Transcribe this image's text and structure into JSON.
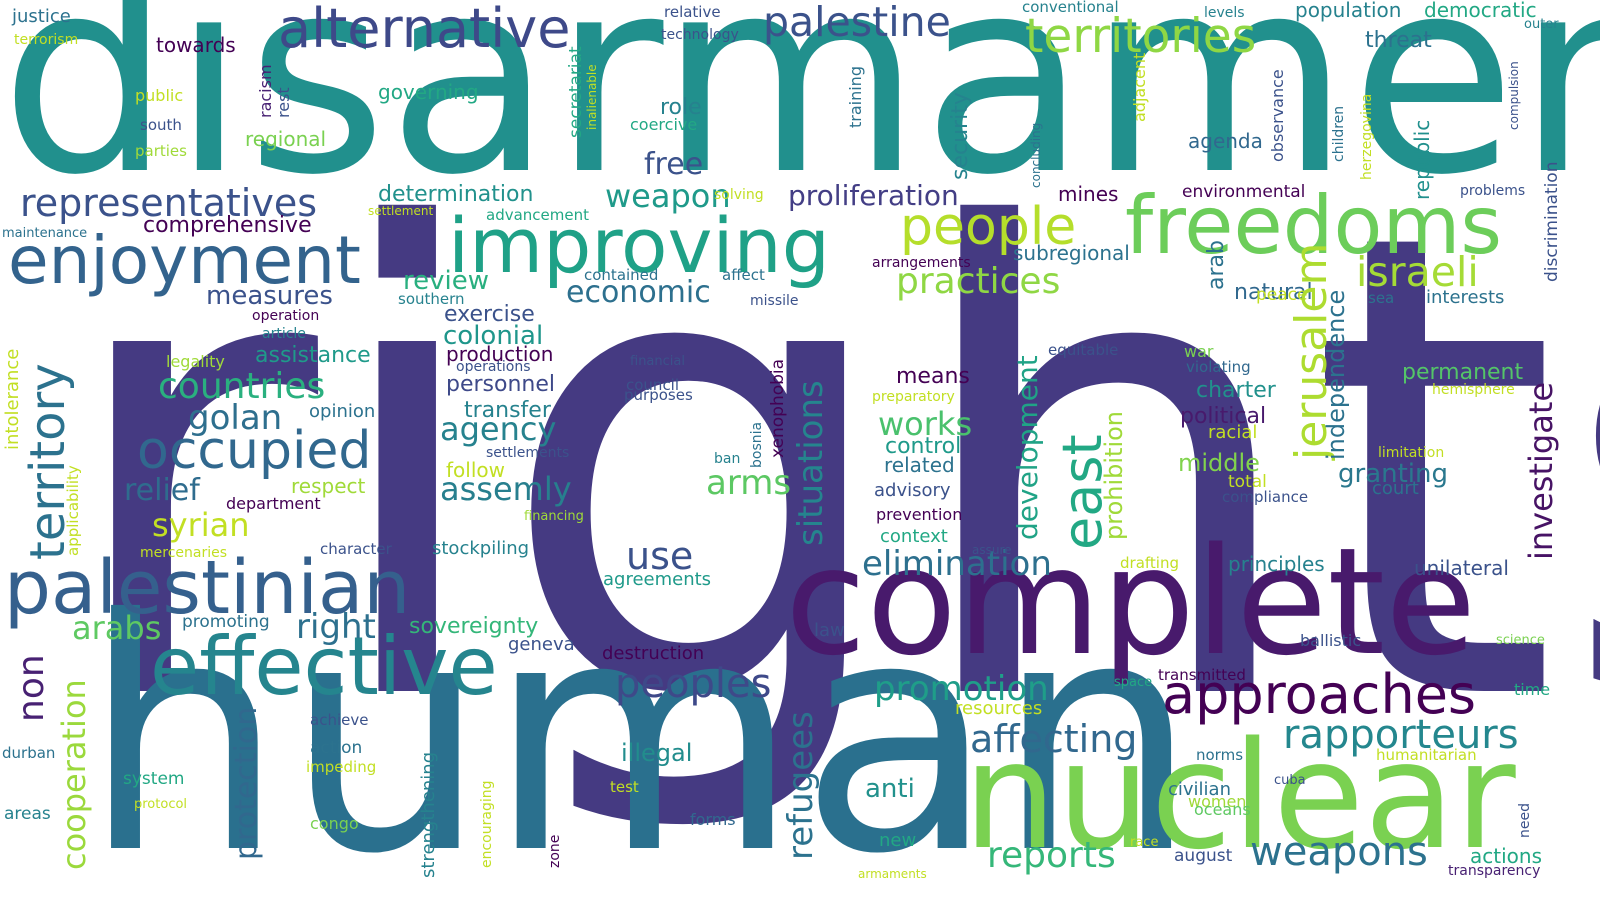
{
  "words": [
    {
      "text": "rights",
      "color": "#453a82"
    },
    {
      "text": "disarmament",
      "color": "#21908d"
    },
    {
      "text": "human",
      "color": "#2a708e"
    },
    {
      "text": "complete",
      "color": "#481a6c"
    },
    {
      "text": "nuclear",
      "color": "#7ad151"
    },
    {
      "text": "freedoms",
      "color": "#6ccd5a"
    },
    {
      "text": "improving",
      "color": "#1fa187"
    },
    {
      "text": "effective",
      "color": "#25858e"
    },
    {
      "text": "palestinian",
      "color": "#35608d"
    },
    {
      "text": "enjoyment",
      "color": "#33638d"
    },
    {
      "text": "alternative",
      "color": "#3e4989"
    },
    {
      "text": "palestine",
      "color": "#3b528b"
    },
    {
      "text": "territories",
      "color": "#8fd744"
    },
    {
      "text": "approaches",
      "color": "#440154"
    },
    {
      "text": "people",
      "color": "#b5de2b"
    },
    {
      "text": "israeli",
      "color": "#a5db36"
    },
    {
      "text": "occupied",
      "color": "#31688e"
    },
    {
      "text": "representatives",
      "color": "#3b528b"
    },
    {
      "text": "territory",
      "color": "#2c728e"
    },
    {
      "text": "jerusalem",
      "color": "#addc30"
    },
    {
      "text": "east",
      "color": "#22a884"
    },
    {
      "text": "weapons",
      "color": "#2c728e"
    },
    {
      "text": "rapporteurs",
      "color": "#24878e"
    },
    {
      "text": "peoples",
      "color": "#3e4989"
    },
    {
      "text": "reports",
      "color": "#35b779"
    },
    {
      "text": "affecting",
      "color": "#31688e"
    },
    {
      "text": "promotion",
      "color": "#1f9e89"
    },
    {
      "text": "countries",
      "color": "#2ab07f"
    },
    {
      "text": "practices",
      "color": "#8fd744"
    },
    {
      "text": "situations",
      "color": "#25858e"
    },
    {
      "text": "elimination",
      "color": "#2d708e"
    },
    {
      "text": "economic",
      "color": "#2d708e"
    },
    {
      "text": "proliferation",
      "color": "#433e85"
    },
    {
      "text": "weapon",
      "color": "#1f9a8a"
    },
    {
      "text": "golan",
      "color": "#2e6f8e"
    },
    {
      "text": "use",
      "color": "#3b528b"
    },
    {
      "text": "syrian",
      "color": "#c2df23"
    },
    {
      "text": "agency",
      "color": "#26828e"
    },
    {
      "text": "assemly",
      "color": "#277f8e"
    },
    {
      "text": "arms",
      "color": "#5cc863"
    },
    {
      "text": "right",
      "color": "#2d708e"
    },
    {
      "text": "relief",
      "color": "#2f6c8e"
    },
    {
      "text": "arabs",
      "color": "#5ec962"
    },
    {
      "text": "measures",
      "color": "#3b528b"
    },
    {
      "text": "works",
      "color": "#4ac16d"
    },
    {
      "text": "investigate",
      "color": "#471365"
    },
    {
      "text": "development",
      "color": "#20a386"
    },
    {
      "text": "independence",
      "color": "#2c728e"
    },
    {
      "text": "prohibition",
      "color": "#a0da39"
    },
    {
      "text": "refugees",
      "color": "#2c728e"
    },
    {
      "text": "cooperation",
      "color": "#9bd93c"
    },
    {
      "text": "protection",
      "color": "#31688e"
    },
    {
      "text": "non",
      "color": "#482173"
    },
    {
      "text": "colonial",
      "color": "#1f968b"
    },
    {
      "text": "granting",
      "color": "#2a788e"
    },
    {
      "text": "middle",
      "color": "#81d34d"
    },
    {
      "text": "free",
      "color": "#3b528b"
    },
    {
      "text": "security",
      "color": "#25838e"
    },
    {
      "text": "review",
      "color": "#29af7f"
    },
    {
      "text": "sovereignty",
      "color": "#34b679"
    },
    {
      "text": "anti",
      "color": "#21918c"
    },
    {
      "text": "illegal",
      "color": "#228d8d"
    },
    {
      "text": "republic",
      "color": "#21908d"
    },
    {
      "text": "natural",
      "color": "#31688e"
    },
    {
      "text": "arab",
      "color": "#2c728e"
    },
    {
      "text": "charter",
      "color": "#21918c"
    },
    {
      "text": "means",
      "color": "#440154"
    },
    {
      "text": "permanent",
      "color": "#54c568"
    },
    {
      "text": "political",
      "color": "#481a6c"
    },
    {
      "text": "comprehensive",
      "color": "#440154"
    },
    {
      "text": "determination",
      "color": "#21918c"
    },
    {
      "text": "assistance",
      "color": "#1f9a8a"
    },
    {
      "text": "production",
      "color": "#440154"
    },
    {
      "text": "personnel",
      "color": "#3e4989"
    },
    {
      "text": "transfer",
      "color": "#26828e"
    },
    {
      "text": "exercise",
      "color": "#3b528b"
    },
    {
      "text": "governing",
      "color": "#22a884"
    },
    {
      "text": "towards",
      "color": "#440154"
    },
    {
      "text": "threat",
      "color": "#2c728e"
    },
    {
      "text": "population",
      "color": "#26828e"
    },
    {
      "text": "democratic",
      "color": "#22a884"
    },
    {
      "text": "role",
      "color": "#26828e"
    },
    {
      "text": "agenda",
      "color": "#31688e"
    },
    {
      "text": "mines",
      "color": "#440154"
    },
    {
      "text": "subregional",
      "color": "#2c728e"
    },
    {
      "text": "environmental",
      "color": "#440154"
    },
    {
      "text": "interests",
      "color": "#2c728e"
    },
    {
      "text": "principles",
      "color": "#26828e"
    },
    {
      "text": "unilateral",
      "color": "#3b528b"
    },
    {
      "text": "court",
      "color": "#2c728e"
    },
    {
      "text": "control",
      "color": "#1f9a8a"
    },
    {
      "text": "related",
      "color": "#2c728e"
    },
    {
      "text": "advisory",
      "color": "#3b528b"
    },
    {
      "text": "prevention",
      "color": "#440154"
    },
    {
      "text": "context",
      "color": "#22a884"
    },
    {
      "text": "regional",
      "color": "#7ad151"
    },
    {
      "text": "respect",
      "color": "#a0da39"
    },
    {
      "text": "follow",
      "color": "#c2df23"
    },
    {
      "text": "opinion",
      "color": "#2c728e"
    },
    {
      "text": "stockpiling",
      "color": "#26828e"
    },
    {
      "text": "agreements",
      "color": "#1f9a8a"
    },
    {
      "text": "geneva",
      "color": "#3b528b"
    },
    {
      "text": "destruction",
      "color": "#440154"
    },
    {
      "text": "promoting",
      "color": "#2c728e"
    },
    {
      "text": "resources",
      "color": "#c2df23"
    },
    {
      "text": "law",
      "color": "#3b528b"
    },
    {
      "text": "ballistic",
      "color": "#3b528b"
    },
    {
      "text": "strengthening",
      "color": "#26828e"
    },
    {
      "text": "action",
      "color": "#2c728e"
    },
    {
      "text": "system",
      "color": "#22a884"
    },
    {
      "text": "areas",
      "color": "#26828e"
    },
    {
      "text": "durban",
      "color": "#2c728e"
    },
    {
      "text": "congo",
      "color": "#7ad151"
    },
    {
      "text": "forms",
      "color": "#31688e"
    },
    {
      "text": "new",
      "color": "#22a884"
    },
    {
      "text": "civilian",
      "color": "#2c728e"
    },
    {
      "text": "women",
      "color": "#a0da39"
    },
    {
      "text": "oceans",
      "color": "#5ec962"
    },
    {
      "text": "august",
      "color": "#3b528b"
    },
    {
      "text": "actions",
      "color": "#22a884"
    },
    {
      "text": "transparency",
      "color": "#482173"
    },
    {
      "text": "time",
      "color": "#22a884"
    },
    {
      "text": "humanitarian",
      "color": "#c2df23"
    },
    {
      "text": "norms",
      "color": "#2c728e"
    },
    {
      "text": "transmitted",
      "color": "#440154"
    },
    {
      "text": "compliance",
      "color": "#3b528b"
    },
    {
      "text": "total",
      "color": "#c2df23"
    },
    {
      "text": "racial",
      "color": "#c2df23"
    },
    {
      "text": "violating",
      "color": "#31688e"
    },
    {
      "text": "war",
      "color": "#7ad151"
    },
    {
      "text": "peace",
      "color": "#c2df23"
    },
    {
      "text": "sea",
      "color": "#2c728e"
    },
    {
      "text": "hemisphere",
      "color": "#c2df23"
    },
    {
      "text": "limitation",
      "color": "#c2df23"
    },
    {
      "text": "justice",
      "color": "#2c728e"
    },
    {
      "text": "terrorism",
      "color": "#c2df23"
    },
    {
      "text": "public",
      "color": "#c2df23"
    },
    {
      "text": "south",
      "color": "#3b528b"
    },
    {
      "text": "parties",
      "color": "#a0da39"
    },
    {
      "text": "racism",
      "color": "#482173"
    },
    {
      "text": "rest",
      "color": "#3b528b"
    },
    {
      "text": "relative",
      "color": "#3b528b"
    },
    {
      "text": "technology",
      "color": "#3b528b"
    },
    {
      "text": "conventional",
      "color": "#26828e"
    },
    {
      "text": "levels",
      "color": "#26828e"
    },
    {
      "text": "outer",
      "color": "#26828e"
    },
    {
      "text": "training",
      "color": "#2c728e"
    },
    {
      "text": "secretariat",
      "color": "#22a884"
    },
    {
      "text": "inalienable",
      "color": "#c2df23"
    },
    {
      "text": "adjacent",
      "color": "#c2df23"
    },
    {
      "text": "coercive",
      "color": "#22a884"
    },
    {
      "text": "observance",
      "color": "#3b528b"
    },
    {
      "text": "children",
      "color": "#2c728e"
    },
    {
      "text": "herzegovina",
      "color": "#c2df23"
    },
    {
      "text": "compulsion",
      "color": "#3b528b"
    },
    {
      "text": "discrimination",
      "color": "#3b528b"
    },
    {
      "text": "concluding",
      "color": "#2c728e"
    },
    {
      "text": "problems",
      "color": "#3b528b"
    },
    {
      "text": "solving",
      "color": "#c2df23"
    },
    {
      "text": "maintenance",
      "color": "#2c728e"
    },
    {
      "text": "settlement",
      "color": "#c2df23"
    },
    {
      "text": "advancement",
      "color": "#22a884"
    },
    {
      "text": "arrangements",
      "color": "#440154"
    },
    {
      "text": "contained",
      "color": "#2c728e"
    },
    {
      "text": "affect",
      "color": "#2c728e"
    },
    {
      "text": "southern",
      "color": "#26828e"
    },
    {
      "text": "missile",
      "color": "#3b528b"
    },
    {
      "text": "operation",
      "color": "#440154"
    },
    {
      "text": "article",
      "color": "#26828e"
    },
    {
      "text": "legality",
      "color": "#a0da39"
    },
    {
      "text": "intolerance",
      "color": "#c2df23"
    },
    {
      "text": "applicability",
      "color": "#c2df23"
    },
    {
      "text": "operations",
      "color": "#3b528b"
    },
    {
      "text": "settlements",
      "color": "#3b528b"
    },
    {
      "text": "department",
      "color": "#440154"
    },
    {
      "text": "financing",
      "color": "#a0da39"
    },
    {
      "text": "character",
      "color": "#3b528b"
    },
    {
      "text": "mercenaries",
      "color": "#c2df23"
    },
    {
      "text": "financial",
      "color": "#3b528b"
    },
    {
      "text": "council",
      "color": "#3b528b"
    },
    {
      "text": "purposes",
      "color": "#3b528b"
    },
    {
      "text": "xenophobia",
      "color": "#440154"
    },
    {
      "text": "bosnia",
      "color": "#2c728e"
    },
    {
      "text": "ban",
      "color": "#26828e"
    },
    {
      "text": "preparatory",
      "color": "#c2df23"
    },
    {
      "text": "equitable",
      "color": "#3b528b"
    },
    {
      "text": "assure",
      "color": "#3b528b"
    },
    {
      "text": "drafting",
      "color": "#c2df23"
    },
    {
      "text": "space",
      "color": "#22a884"
    },
    {
      "text": "race",
      "color": "#c2df23"
    },
    {
      "text": "cuba",
      "color": "#3b528b"
    },
    {
      "text": "science",
      "color": "#7ad151"
    },
    {
      "text": "need",
      "color": "#3b528b"
    },
    {
      "text": "armaments",
      "color": "#c2df23"
    },
    {
      "text": "achieve",
      "color": "#3b528b"
    },
    {
      "text": "impeding",
      "color": "#c2df23"
    },
    {
      "text": "protocol",
      "color": "#c2df23"
    },
    {
      "text": "test",
      "color": "#c2df23"
    },
    {
      "text": "encouraging",
      "color": "#c2df23"
    },
    {
      "text": "zone",
      "color": "#440154"
    }
  ]
}
